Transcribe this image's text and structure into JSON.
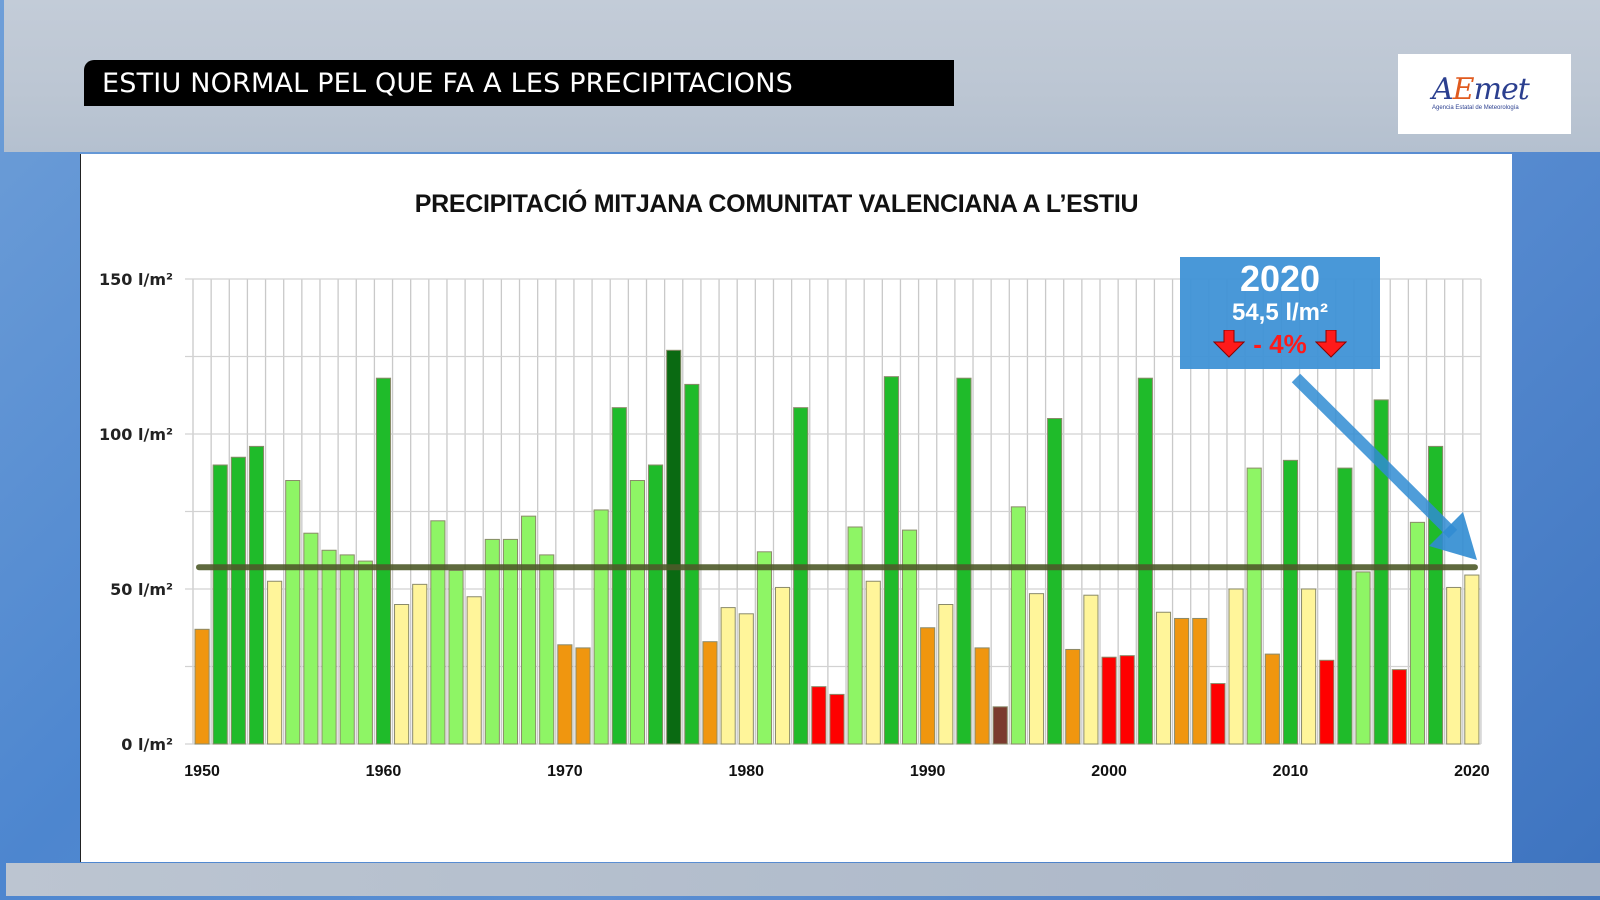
{
  "header": {
    "headline": "ESTIU NORMAL PEL QUE FA A LES PRECIPITACIONS"
  },
  "logo": {
    "mark_a": "A",
    "mark_e": "E",
    "mark_rest": "met",
    "subtitle": "Agencia Estatal de Meteorología",
    "icon": "aemet-logo"
  },
  "callout": {
    "year": "2020",
    "value": "54,5 l/m²",
    "delta": "- 4%",
    "icon_left": "red-down-arrow-icon",
    "icon_right": "red-down-arrow-icon",
    "pointer": "blue-diagonal-arrow"
  },
  "colors": {
    "very_dry": "#7b3a2e",
    "dry_red": "#ff0000",
    "dry_orange": "#f0960f",
    "normal_yellow": "#fff59a",
    "wet_lightgreen": "#8ef565",
    "wet_green": "#1fbb2a",
    "very_wet": "#0a6a12",
    "mean_line": "#4e5a2a",
    "callout_bg": "#3f92d6"
  },
  "chart_data": {
    "type": "bar",
    "title": "PRECIPITACIÓ MITJANA COMUNITAT VALENCIANA A L’ESTIU",
    "xlabel": "",
    "ylabel": "",
    "ylim": [
      0,
      150
    ],
    "yticks": [
      0,
      50,
      100,
      150
    ],
    "ytick_labels": [
      "0 l/m²",
      "50 l/m²",
      "100 l/m²",
      "150 l/m²"
    ],
    "xtick_labels": [
      "1950",
      "1960",
      "1970",
      "1980",
      "1990",
      "2000",
      "2010",
      "2020"
    ],
    "grid": true,
    "mean_line_value": 57,
    "categories": [
      "1950",
      "1951",
      "1952",
      "1953",
      "1954",
      "1955",
      "1956",
      "1957",
      "1958",
      "1959",
      "1960",
      "1961",
      "1962",
      "1963",
      "1964",
      "1965",
      "1966",
      "1967",
      "1968",
      "1969",
      "1970",
      "1971",
      "1972",
      "1973",
      "1974",
      "1975",
      "1976",
      "1977",
      "1978",
      "1979",
      "1980",
      "1981",
      "1982",
      "1983",
      "1984",
      "1985",
      "1986",
      "1987",
      "1988",
      "1989",
      "1990",
      "1991",
      "1992",
      "1993",
      "1994",
      "1995",
      "1996",
      "1997",
      "1998",
      "1999",
      "2000",
      "2001",
      "2002",
      "2003",
      "2004",
      "2005",
      "2006",
      "2007",
      "2008",
      "2009",
      "2010",
      "2011",
      "2012",
      "2013",
      "2014",
      "2015",
      "2016",
      "2017",
      "2018",
      "2019",
      "2020"
    ],
    "values": [
      37,
      90,
      92.5,
      96,
      52.5,
      85,
      68,
      62.5,
      61,
      59,
      118,
      45,
      51.5,
      72,
      56,
      47.5,
      66,
      66,
      73.5,
      61,
      32,
      31,
      75.5,
      108.5,
      85,
      90,
      127,
      116,
      33,
      44,
      42,
      62,
      50.5,
      108.5,
      18.5,
      16,
      70,
      52.5,
      118.5,
      69,
      37.5,
      45,
      118,
      31,
      12,
      76.5,
      48.5,
      105,
      30.5,
      48,
      28,
      28.5,
      118,
      42.5,
      40.5,
      40.5,
      19.5,
      50,
      89,
      29,
      91.5,
      50,
      27,
      89,
      55.5,
      111,
      24,
      71.5,
      96,
      50.5,
      54.5
    ],
    "classes": [
      "dry_orange",
      "wet_green",
      "wet_green",
      "wet_green",
      "normal_yellow",
      "wet_lightgreen",
      "wet_lightgreen",
      "wet_lightgreen",
      "wet_lightgreen",
      "wet_lightgreen",
      "wet_green",
      "normal_yellow",
      "normal_yellow",
      "wet_lightgreen",
      "wet_lightgreen",
      "normal_yellow",
      "wet_lightgreen",
      "wet_lightgreen",
      "wet_lightgreen",
      "wet_lightgreen",
      "dry_orange",
      "dry_orange",
      "wet_lightgreen",
      "wet_green",
      "wet_lightgreen",
      "wet_green",
      "very_wet",
      "wet_green",
      "dry_orange",
      "normal_yellow",
      "normal_yellow",
      "wet_lightgreen",
      "normal_yellow",
      "wet_green",
      "dry_red",
      "dry_red",
      "wet_lightgreen",
      "normal_yellow",
      "wet_green",
      "wet_lightgreen",
      "dry_orange",
      "normal_yellow",
      "wet_green",
      "dry_orange",
      "very_dry",
      "wet_lightgreen",
      "normal_yellow",
      "wet_green",
      "dry_orange",
      "normal_yellow",
      "dry_red",
      "dry_red",
      "wet_green",
      "normal_yellow",
      "dry_orange",
      "dry_orange",
      "dry_red",
      "normal_yellow",
      "wet_lightgreen",
      "dry_orange",
      "wet_green",
      "normal_yellow",
      "dry_red",
      "wet_green",
      "wet_lightgreen",
      "wet_green",
      "dry_red",
      "wet_lightgreen",
      "wet_green",
      "normal_yellow",
      "normal_yellow"
    ],
    "annotation": {
      "year": "2020",
      "value_text": "54,5 l/m²",
      "change_text": "- 4%"
    }
  }
}
